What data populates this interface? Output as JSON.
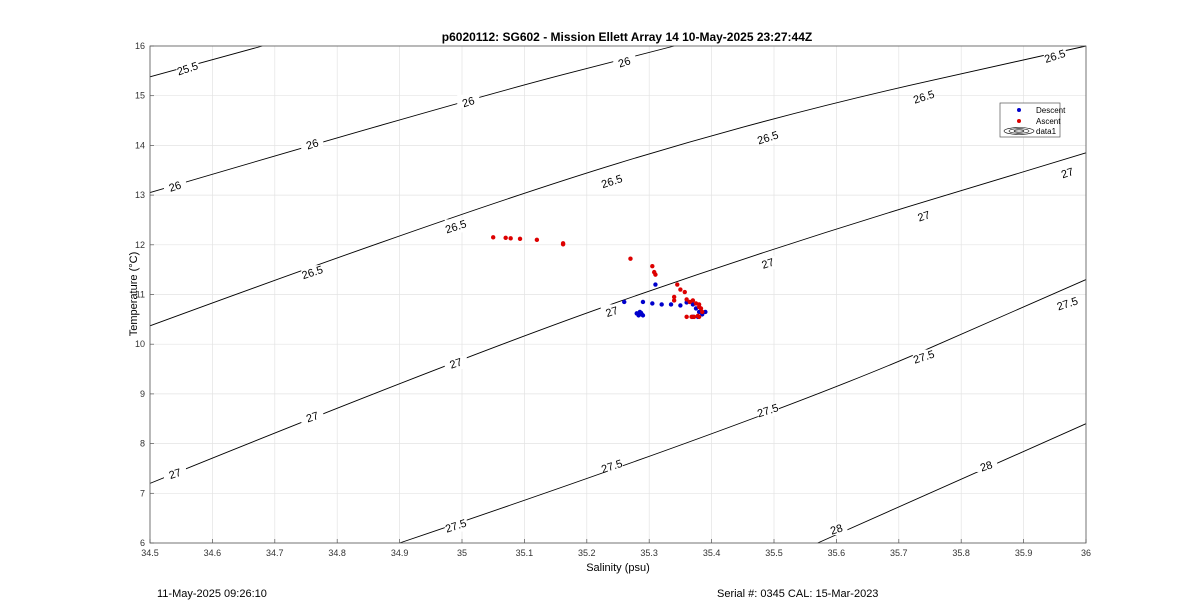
{
  "chart_data": {
    "type": "scatter",
    "title": "p6020112: SG602 - Mission Ellett Array 14 10-May-2025 23:27:44Z",
    "xlabel": "Salinity (psu)",
    "ylabel": "Temperature (°C)",
    "xlim": [
      34.5,
      36
    ],
    "ylim": [
      6,
      16
    ],
    "xticks": [
      "34.5",
      "34.6",
      "34.7",
      "34.8",
      "34.9",
      "35",
      "35.1",
      "35.2",
      "35.3",
      "35.4",
      "35.5",
      "35.6",
      "35.7",
      "35.8",
      "35.9",
      "36"
    ],
    "yticks": [
      "6",
      "7",
      "8",
      "9",
      "10",
      "11",
      "12",
      "13",
      "14",
      "15",
      "16"
    ],
    "grid": true,
    "legend_position": "top-right",
    "legend": [
      "Descent",
      "Ascent",
      "data1"
    ],
    "colors": {
      "descent": "#0000cc",
      "ascent": "#dd0000",
      "contour": "#000000"
    },
    "series": [
      {
        "name": "Descent",
        "points": [
          [
            35.26,
            10.85
          ],
          [
            35.28,
            10.62
          ],
          [
            35.283,
            10.58
          ],
          [
            35.285,
            10.65
          ],
          [
            35.288,
            10.6
          ],
          [
            35.29,
            10.58
          ],
          [
            35.287,
            10.63
          ],
          [
            35.29,
            10.85
          ],
          [
            35.305,
            10.82
          ],
          [
            35.31,
            11.2
          ],
          [
            35.32,
            10.8
          ],
          [
            35.335,
            10.8
          ],
          [
            35.35,
            10.78
          ],
          [
            35.36,
            10.84
          ],
          [
            35.37,
            10.8
          ],
          [
            35.375,
            10.72
          ],
          [
            35.38,
            10.65
          ],
          [
            35.385,
            10.6
          ],
          [
            35.39,
            10.65
          ],
          [
            35.37,
            10.55
          ],
          [
            35.378,
            10.55
          ]
        ]
      },
      {
        "name": "Ascent",
        "points": [
          [
            35.05,
            12.15
          ],
          [
            35.07,
            12.14
          ],
          [
            35.078,
            12.13
          ],
          [
            35.093,
            12.12
          ],
          [
            35.12,
            12.1
          ],
          [
            35.162,
            12.03
          ],
          [
            35.162,
            12.01
          ],
          [
            35.27,
            11.72
          ],
          [
            35.305,
            11.57
          ],
          [
            35.308,
            11.45
          ],
          [
            35.31,
            11.4
          ],
          [
            35.345,
            11.2
          ],
          [
            35.35,
            11.1
          ],
          [
            35.357,
            11.05
          ],
          [
            35.34,
            10.95
          ],
          [
            35.34,
            10.88
          ],
          [
            35.36,
            10.9
          ],
          [
            35.365,
            10.85
          ],
          [
            35.37,
            10.88
          ],
          [
            35.375,
            10.82
          ],
          [
            35.38,
            10.75
          ],
          [
            35.38,
            10.8
          ],
          [
            35.383,
            10.72
          ],
          [
            35.385,
            10.65
          ],
          [
            35.38,
            10.55
          ],
          [
            35.368,
            10.55
          ],
          [
            35.372,
            10.55
          ],
          [
            35.378,
            10.57
          ],
          [
            35.36,
            10.55
          ]
        ]
      }
    ],
    "contours": [
      {
        "label": "25.5",
        "points": [
          [
            34.5,
            15.38
          ],
          [
            34.68,
            16.0
          ]
        ]
      },
      {
        "label": "26",
        "points": [
          [
            34.5,
            13.05
          ],
          [
            35.0,
            14.9
          ],
          [
            35.34,
            16.0
          ]
        ]
      },
      {
        "label": "26.5",
        "points": [
          [
            34.5,
            10.37
          ],
          [
            35.0,
            12.68
          ],
          [
            35.5,
            14.6
          ],
          [
            36.0,
            16.0
          ]
        ]
      },
      {
        "label": "27",
        "points": [
          [
            34.5,
            7.2
          ],
          [
            35.0,
            9.75
          ],
          [
            35.5,
            11.95
          ],
          [
            36.0,
            13.85
          ]
        ]
      },
      {
        "label": "27.5",
        "points": [
          [
            34.9,
            6.0
          ],
          [
            35.5,
            8.55
          ],
          [
            36.0,
            11.3
          ]
        ]
      },
      {
        "label": "28",
        "points": [
          [
            35.57,
            6.0
          ],
          [
            36.0,
            8.4
          ]
        ]
      }
    ],
    "contour_labels": [
      {
        "label": "25.5",
        "at": [
          34.56,
          15.55
        ]
      },
      {
        "label": "26",
        "at": [
          34.54,
          13.18
        ]
      },
      {
        "label": "26",
        "at": [
          34.76,
          14.03
        ]
      },
      {
        "label": "26",
        "at": [
          35.01,
          14.88
        ]
      },
      {
        "label": "26",
        "at": [
          35.26,
          15.68
        ]
      },
      {
        "label": "26.5",
        "at": [
          34.76,
          11.45
        ]
      },
      {
        "label": "26.5",
        "at": [
          34.99,
          12.37
        ]
      },
      {
        "label": "26.5",
        "at": [
          35.24,
          13.28
        ]
      },
      {
        "label": "26.5",
        "at": [
          35.49,
          14.16
        ]
      },
      {
        "label": "26.5",
        "at": [
          35.74,
          14.98
        ]
      },
      {
        "label": "26.5",
        "at": [
          35.95,
          15.8
        ]
      },
      {
        "label": "27",
        "at": [
          34.54,
          7.4
        ]
      },
      {
        "label": "27",
        "at": [
          34.76,
          8.54
        ]
      },
      {
        "label": "27",
        "at": [
          34.99,
          9.62
        ]
      },
      {
        "label": "27",
        "at": [
          35.24,
          10.66
        ]
      },
      {
        "label": "27",
        "at": [
          35.49,
          11.63
        ]
      },
      {
        "label": "27",
        "at": [
          35.74,
          12.58
        ]
      },
      {
        "label": "27",
        "at": [
          35.97,
          13.45
        ]
      },
      {
        "label": "27.5",
        "at": [
          34.99,
          6.35
        ]
      },
      {
        "label": "27.5",
        "at": [
          35.24,
          7.55
        ]
      },
      {
        "label": "27.5",
        "at": [
          35.49,
          8.67
        ]
      },
      {
        "label": "27.5",
        "at": [
          35.74,
          9.75
        ]
      },
      {
        "label": "27.5",
        "at": [
          35.97,
          10.82
        ]
      },
      {
        "label": "28",
        "at": [
          35.6,
          6.28
        ]
      },
      {
        "label": "28",
        "at": [
          35.84,
          7.55
        ]
      }
    ]
  },
  "footer": {
    "left": "11-May-2025 09:26:10",
    "right": "Serial #: 0345  CAL: 15-Mar-2023"
  }
}
